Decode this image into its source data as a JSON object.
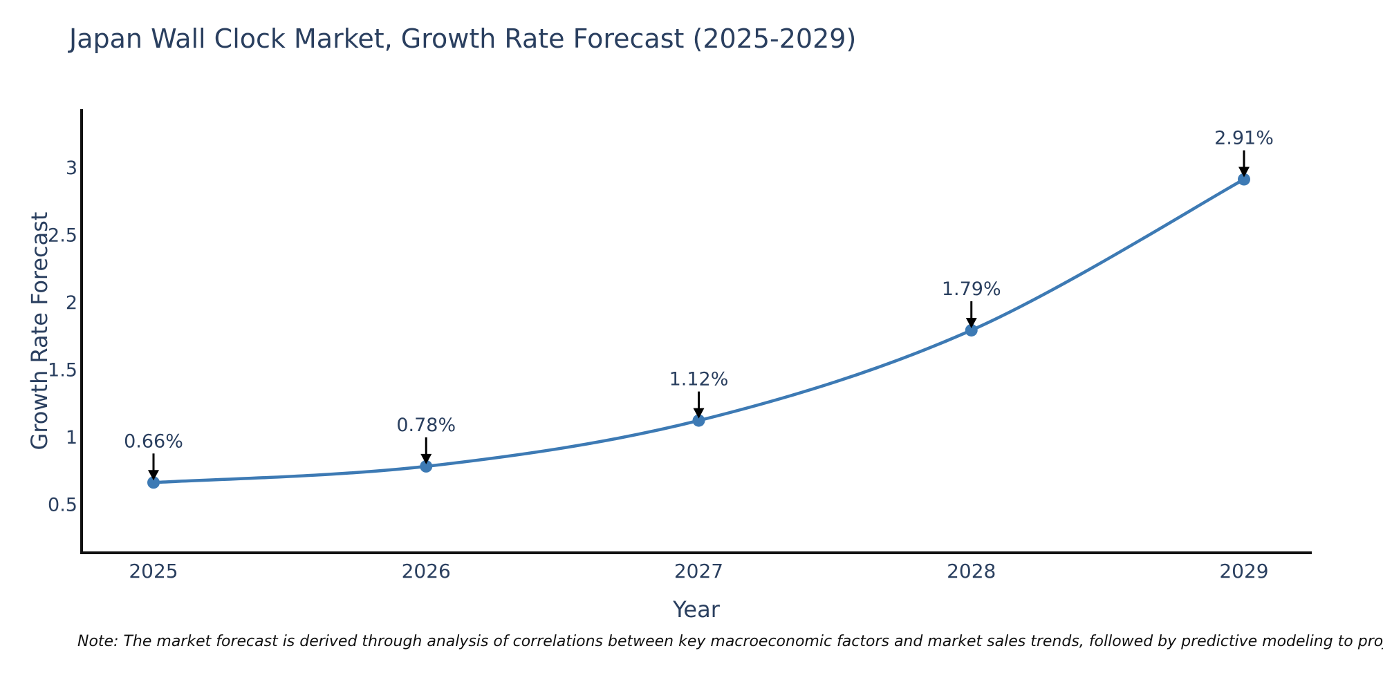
{
  "page": {
    "title": "Japan Wall Clock Market, Growth Rate Forecast (2025-2029)",
    "note": "Note: The market forecast is derived through analysis of correlations between key macroeconomic factors and market sales trends, followed by predictive modeling to project future sales"
  },
  "chart_data": {
    "type": "line",
    "title": "Japan Wall Clock Market, Growth Rate Forecast (2025-2029)",
    "xlabel": "Year",
    "ylabel": "Growth Rate Forecast",
    "categories": [
      "2025",
      "2026",
      "2027",
      "2028",
      "2029"
    ],
    "values": [
      0.66,
      0.78,
      1.12,
      1.79,
      2.91
    ],
    "point_labels": [
      "0.66%",
      "0.78%",
      "1.12%",
      "1.79%",
      "2.91%"
    ],
    "yticks": [
      "0.5",
      "1",
      "1.5",
      "2",
      "2.5",
      "3"
    ],
    "ytick_values": [
      0.5,
      1,
      1.5,
      2,
      2.5,
      3
    ],
    "ylim": [
      0.14,
      3.43
    ],
    "grid": false,
    "legend_position": "none",
    "line_shape": "spline",
    "colors": {
      "line": "#3d7ab4",
      "marker": "#3d7ab4",
      "axis": "#111111",
      "tick_text": "#2a3f5f",
      "annotation_text": "#2a3f5f",
      "arrow": "#000000",
      "background": "#ffffff"
    }
  }
}
